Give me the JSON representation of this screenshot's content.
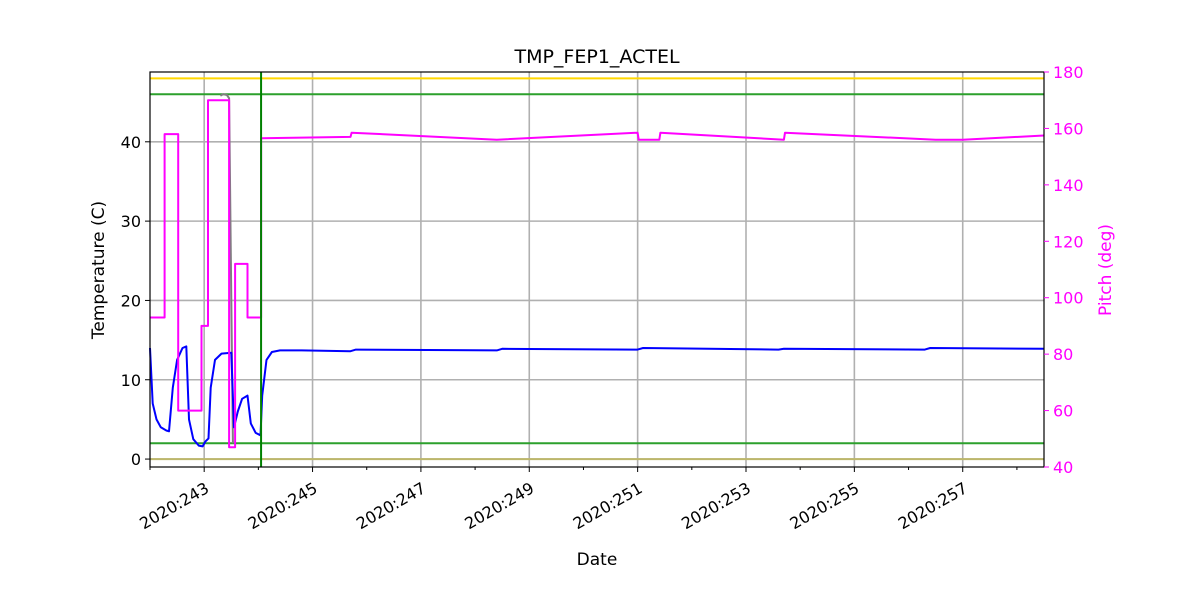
{
  "chart_data": {
    "type": "line",
    "title": "TMP_FEP1_ACTEL",
    "xlabel": "Date",
    "ylabel": "Temperature (C)",
    "y2label": "Pitch (deg)",
    "xlim": [
      242.0,
      258.5
    ],
    "ylim": [
      -1,
      48.8
    ],
    "y2lim": [
      40,
      180
    ],
    "grid": true,
    "x_ticks": [
      {
        "value": 243,
        "label": "2020:243"
      },
      {
        "value": 245,
        "label": "2020:245"
      },
      {
        "value": 247,
        "label": "2020:247"
      },
      {
        "value": 249,
        "label": "2020:249"
      },
      {
        "value": 251,
        "label": "2020:251"
      },
      {
        "value": 253,
        "label": "2020:253"
      },
      {
        "value": 255,
        "label": "2020:255"
      },
      {
        "value": 257,
        "label": "2020:257"
      }
    ],
    "y_ticks": [
      {
        "value": 0,
        "label": "0"
      },
      {
        "value": 10,
        "label": "10"
      },
      {
        "value": 20,
        "label": "20"
      },
      {
        "value": 30,
        "label": "30"
      },
      {
        "value": 40,
        "label": "40"
      }
    ],
    "y2_ticks": [
      {
        "value": 40,
        "label": "40"
      },
      {
        "value": 60,
        "label": "60"
      },
      {
        "value": 80,
        "label": "80"
      },
      {
        "value": 100,
        "label": "100"
      },
      {
        "value": 120,
        "label": "120"
      },
      {
        "value": 140,
        "label": "140"
      },
      {
        "value": 160,
        "label": "160"
      },
      {
        "value": 180,
        "label": "180"
      }
    ],
    "hlines": [
      {
        "value": 48.0,
        "color": "#ffd700"
      },
      {
        "value": 46.0,
        "color": "#2ca02c"
      },
      {
        "value": 2.0,
        "color": "#2ca02c"
      },
      {
        "value": 0.0,
        "color": "#bdb76b"
      }
    ],
    "vline": {
      "value": 244.05,
      "color": "#008000"
    },
    "series": [
      {
        "axis": "left",
        "color": "#7f7f7f",
        "points": [
          [
            243.3,
            45.8
          ],
          [
            243.35,
            46.0
          ],
          [
            243.42,
            45.9
          ],
          [
            243.46,
            45.5
          ],
          [
            243.5,
            20
          ],
          [
            243.53,
            2
          ]
        ]
      },
      {
        "axis": "left",
        "color": "#0000ff",
        "points": [
          [
            242.0,
            14.0
          ],
          [
            242.05,
            7.0
          ],
          [
            242.12,
            5.0
          ],
          [
            242.2,
            4.0
          ],
          [
            242.3,
            3.6
          ],
          [
            242.35,
            3.5
          ],
          [
            242.42,
            9.0
          ],
          [
            242.5,
            12.5
          ],
          [
            242.6,
            14.0
          ],
          [
            242.67,
            14.2
          ],
          [
            242.72,
            5.0
          ],
          [
            242.8,
            2.5
          ],
          [
            242.9,
            1.7
          ],
          [
            242.97,
            1.6
          ],
          [
            243.02,
            2.2
          ],
          [
            243.08,
            2.6
          ],
          [
            243.12,
            9.0
          ],
          [
            243.2,
            12.5
          ],
          [
            243.32,
            13.3
          ],
          [
            243.5,
            13.4
          ],
          [
            243.55,
            4.0
          ],
          [
            243.62,
            6.0
          ],
          [
            243.7,
            7.6
          ],
          [
            243.8,
            8.0
          ],
          [
            243.86,
            4.5
          ],
          [
            243.95,
            3.3
          ],
          [
            244.04,
            3.0
          ],
          [
            244.07,
            8.0
          ],
          [
            244.15,
            12.5
          ],
          [
            244.25,
            13.5
          ],
          [
            244.4,
            13.7
          ],
          [
            244.8,
            13.7
          ],
          [
            245.7,
            13.6
          ],
          [
            245.8,
            13.8
          ],
          [
            248.4,
            13.7
          ],
          [
            248.5,
            13.9
          ],
          [
            251.0,
            13.8
          ],
          [
            251.1,
            14.0
          ],
          [
            253.6,
            13.8
          ],
          [
            253.7,
            13.9
          ],
          [
            256.3,
            13.8
          ],
          [
            256.4,
            14.0
          ],
          [
            258.5,
            13.9
          ]
        ]
      },
      {
        "axis": "right",
        "color": "#ff00ff",
        "points": [
          [
            242.0,
            93
          ],
          [
            242.27,
            93
          ],
          [
            242.27,
            158
          ],
          [
            242.52,
            158
          ],
          [
            242.52,
            60
          ],
          [
            242.95,
            60
          ],
          [
            242.95,
            90
          ],
          [
            243.07,
            90
          ],
          [
            243.07,
            170
          ],
          [
            243.46,
            170
          ],
          [
            243.46,
            47
          ],
          [
            243.57,
            47
          ],
          [
            243.57,
            112
          ],
          [
            243.8,
            112
          ],
          [
            243.8,
            93
          ],
          [
            244.05,
            93
          ],
          [
            244.05,
            156.5
          ],
          [
            245.7,
            157
          ],
          [
            245.72,
            158.5
          ],
          [
            248.4,
            156
          ],
          [
            251.0,
            158.5
          ],
          [
            251.02,
            156
          ],
          [
            251.4,
            156
          ],
          [
            251.42,
            158.5
          ],
          [
            253.7,
            156
          ],
          [
            253.72,
            158.5
          ],
          [
            256.5,
            156
          ],
          [
            257.0,
            156
          ],
          [
            258.5,
            157.5
          ]
        ]
      }
    ]
  }
}
